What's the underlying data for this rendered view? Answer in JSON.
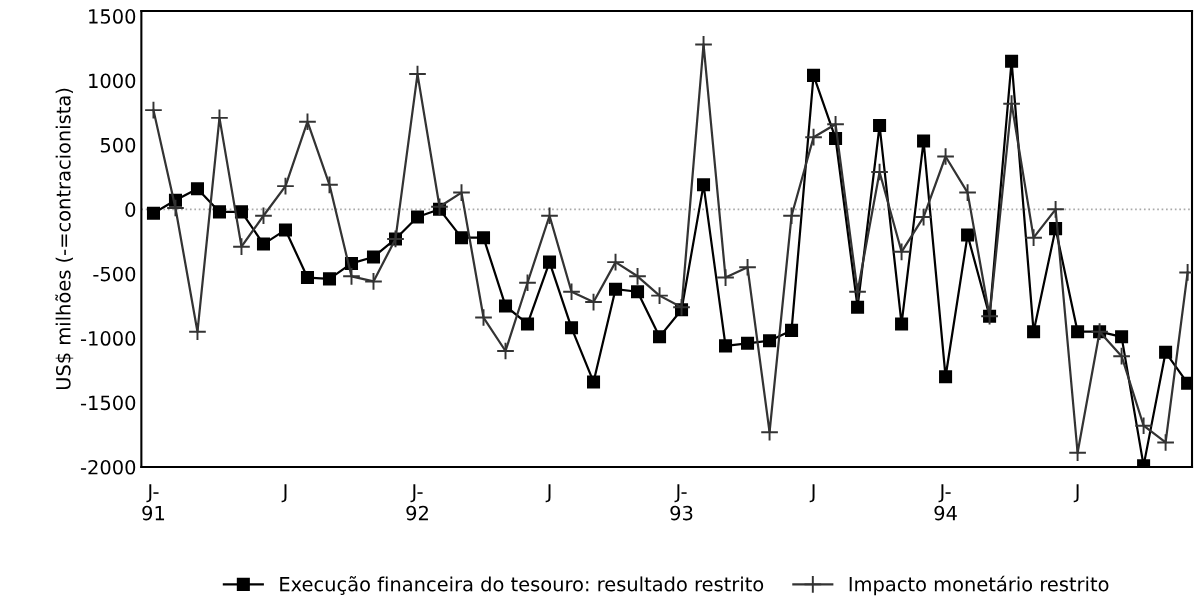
{
  "chart_data": {
    "type": "line",
    "ylabel": "US$ milhões (-=contracionista)",
    "categories": [
      "J-\n91",
      null,
      null,
      null,
      null,
      null,
      "J",
      null,
      null,
      null,
      null,
      null,
      "J-\n92",
      null,
      null,
      null,
      null,
      null,
      "J",
      null,
      null,
      null,
      null,
      null,
      "J-\n93",
      null,
      null,
      null,
      null,
      null,
      "J",
      null,
      null,
      null,
      null,
      null,
      "J-\n94",
      null,
      null,
      null,
      null,
      null,
      "J",
      null,
      null,
      null,
      null,
      null
    ],
    "series": [
      {
        "name": "Execução financeira do tesouro: resultado restrito",
        "color": "#000000",
        "marker": "square",
        "values": [
          -30,
          70,
          160,
          -20,
          -20,
          -270,
          -160,
          -530,
          -540,
          -420,
          -370,
          -230,
          -60,
          0,
          -220,
          -220,
          -750,
          -890,
          -410,
          -920,
          -1340,
          -620,
          -640,
          -990,
          -780,
          190,
          -1060,
          -1040,
          -1020,
          -940,
          1040,
          550,
          -760,
          650,
          -890,
          530,
          -1300,
          -200,
          -830,
          1150,
          -950,
          -150,
          -950,
          -950,
          -990,
          -1990,
          -1110,
          -1350
        ]
      },
      {
        "name": "Impacto monetário restrito",
        "color": "#333333",
        "marker": "cross",
        "values": [
          770,
          10,
          -950,
          710,
          -290,
          -50,
          180,
          680,
          190,
          -520,
          -560,
          -230,
          1050,
          20,
          130,
          -840,
          -1100,
          -570,
          -50,
          -640,
          -720,
          -410,
          -520,
          -670,
          -760,
          1280,
          -530,
          -450,
          -1730,
          -50,
          560,
          660,
          -640,
          290,
          -330,
          -60,
          410,
          130,
          -830,
          820,
          -220,
          0,
          -1890,
          -950,
          -1140,
          -1680,
          -1810,
          -490
        ]
      }
    ],
    "ylim": [
      -2000,
      1540
    ],
    "yticks": [
      -2000,
      -1500,
      -1000,
      -500,
      0,
      500,
      1000,
      1500
    ],
    "ref_lines": [
      {
        "axis": "y",
        "value": 0,
        "color": "#aaaaaa",
        "line_style": "dotted"
      }
    ],
    "grid": false,
    "legend": "bottom",
    "line_style": "solid"
  }
}
